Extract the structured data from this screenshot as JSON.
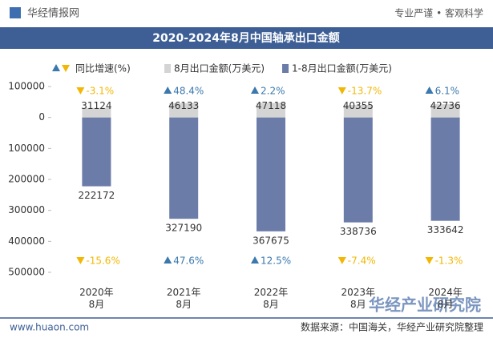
{
  "header": {
    "site": "华经情报网",
    "slogan": "专业严谨 • 客观科学"
  },
  "chart_data": {
    "type": "bar",
    "title": "2020-2024年8月中国轴承出口金额",
    "categories": [
      "2020年8月",
      "2021年8月",
      "2022年8月",
      "2023年8月",
      "2024年8月"
    ],
    "growth_name": "同比增速(%)",
    "up_color": "#3b78ad",
    "down_color": "#f2b705",
    "series": [
      {
        "name": "8月出口金额(万美元)",
        "color": "#d4d4d4",
        "direction": "up",
        "values": [
          31124,
          46133,
          47118,
          40355,
          42736
        ],
        "growth": [
          -3.1,
          48.4,
          2.2,
          -13.7,
          6.1
        ],
        "growth_labels": [
          "-3.1%",
          "48.4%",
          "2.2%",
          "-13.7%",
          "6.1%"
        ]
      },
      {
        "name": "1-8月出口金额(万美元)",
        "color": "#6b7ca8",
        "direction": "down",
        "values": [
          222172,
          327190,
          367675,
          338736,
          333642
        ],
        "growth": [
          -15.6,
          47.6,
          12.5,
          -7.4,
          -1.3
        ],
        "growth_labels": [
          "-15.6%",
          "47.6%",
          "12.5%",
          "-7.4%",
          "-1.3%"
        ]
      }
    ],
    "ylim": [
      -500000,
      100000
    ],
    "yticks": [
      100000,
      0,
      {
        "value": -100000,
        "label": "100000"
      },
      {
        "value": -200000,
        "label": "200000"
      },
      {
        "value": -300000,
        "label": "300000"
      },
      {
        "value": -400000,
        "label": "400000"
      },
      {
        "value": -500000,
        "label": "500000"
      }
    ],
    "grid": false
  },
  "footer": {
    "url": "www.huaon.com",
    "source": "数据来源：中国海关，华经产业研究院整理"
  },
  "watermark": "华经产业研究院"
}
